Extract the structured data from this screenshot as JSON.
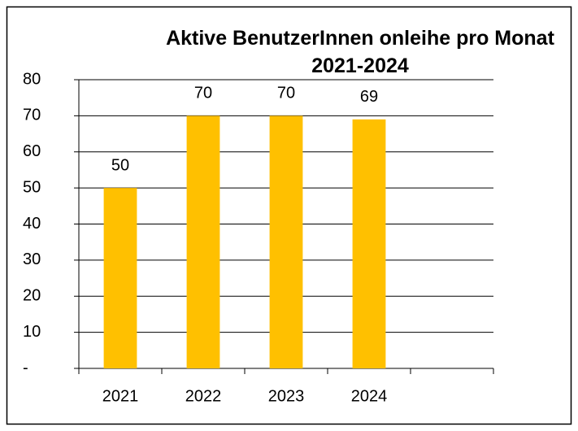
{
  "chart_data": {
    "type": "bar",
    "title": "Aktive BenutzerInnen onleihe pro Monat 2021-2024",
    "categories": [
      "2021",
      "2022",
      "2023",
      "2024",
      null
    ],
    "values": [
      50,
      70,
      70,
      69,
      null
    ],
    "color": "#ffc000",
    "ylim": [
      0,
      80
    ],
    "yticks": [
      {
        "value": 0,
        "label": "-"
      },
      10,
      20,
      30,
      40,
      50,
      60,
      70,
      80
    ],
    "grid": true
  }
}
